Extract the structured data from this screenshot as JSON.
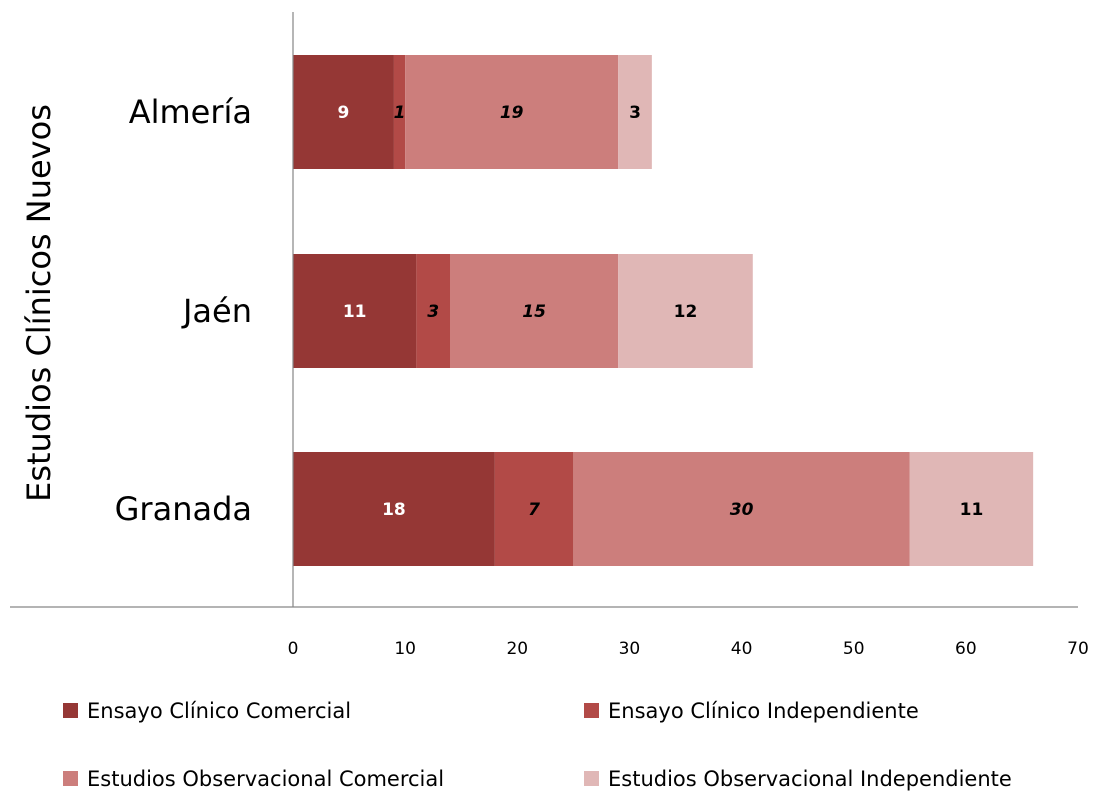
{
  "chart_data": {
    "type": "bar",
    "orientation": "horizontal",
    "stacked": true,
    "group_label": "Estudios Clínicos Nuevos",
    "categories": [
      "Granada",
      "Jaén",
      "Almería"
    ],
    "xlim": [
      0,
      70
    ],
    "x_ticks": [
      "0",
      "10",
      "20",
      "30",
      "40",
      "50",
      "60",
      "70"
    ],
    "grid": false,
    "legend_position": "bottom",
    "series": [
      {
        "name": "Ensayo Clínico Comercial",
        "color": "#953735",
        "label_color": "#ffffff",
        "label_style": "bold",
        "values": [
          18,
          11,
          9
        ]
      },
      {
        "name": "Ensayo Clínico Independiente",
        "color": "#b24a47",
        "label_color": "#000000",
        "label_style": "bold-italic",
        "values": [
          7,
          3,
          1
        ]
      },
      {
        "name": "Estudios Observacional Comercial",
        "color": "#cc7e7c",
        "label_color": "#000000",
        "label_style": "bold-italic",
        "values": [
          30,
          15,
          19
        ]
      },
      {
        "name": "Estudios Observacional Independiente",
        "color": "#e0b7b6",
        "label_color": "#000000",
        "label_style": "normal",
        "values": [
          11,
          12,
          3
        ]
      }
    ]
  }
}
